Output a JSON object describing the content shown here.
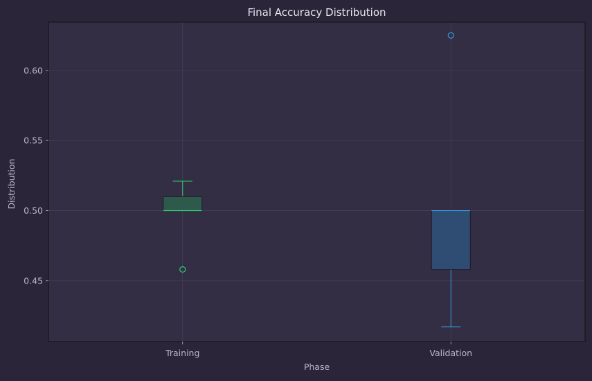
{
  "chart_data": {
    "type": "box",
    "title": "Final Accuracy Distribution",
    "xlabel": "Phase",
    "ylabel": "Distribution",
    "ylim": [
      0.4065,
      0.6345
    ],
    "yticks": [
      0.45,
      0.5,
      0.55,
      0.6
    ],
    "ytick_labels": [
      "0.45",
      "0.50",
      "0.55",
      "0.60"
    ],
    "grid": true,
    "categories": [
      "Training",
      "Validation"
    ],
    "boxes": [
      {
        "category": "Training",
        "whisker_low": 0.5,
        "q1": 0.5,
        "median": 0.5,
        "q3": 0.51,
        "whisker_high": 0.521,
        "outliers": [
          0.458
        ],
        "color": "#2ecc71",
        "fill": "#2d5a4b"
      },
      {
        "category": "Validation",
        "whisker_low": 0.417,
        "q1": 0.458,
        "median": 0.5,
        "q3": 0.5,
        "whisker_high": 0.5,
        "outliers": [
          0.625
        ],
        "color": "#3498db",
        "fill": "#2f4d72"
      }
    ]
  },
  "colors": {
    "page_background": "#2a2539",
    "plot_background": "#332e44",
    "grid": "#453f57",
    "axis": "#111111",
    "text": "#bbb6cc",
    "title": "#e8e6f0"
  }
}
